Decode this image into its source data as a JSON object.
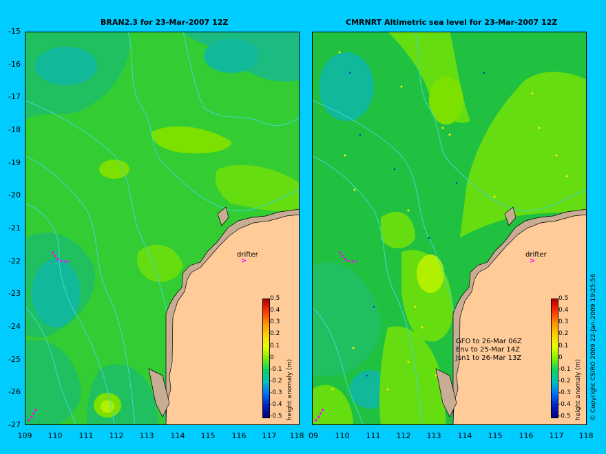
{
  "left_panel": {
    "title": "BRAN2.3 for 23-Mar-2007 12Z",
    "drifter_label": "drifter",
    "arrow": ">"
  },
  "right_panel": {
    "title": "CMRNRT Altimetric sea level  for 23-Mar-2007 12Z",
    "drifter_label": "drifter",
    "arrow": ">",
    "legend_lines": [
      "GFO to 26-Mar 06Z",
      "Env to 25-Mar 14Z",
      "Jsn1 to 26-Mar 13Z"
    ]
  },
  "y_axis_labels": [
    "-15",
    "-16",
    "-17",
    "-18",
    "-19",
    "-20",
    "-21",
    "-22",
    "-23",
    "-24",
    "-25",
    "-26",
    "-27"
  ],
  "left_x_labels": [
    "109",
    "110",
    "111",
    "112",
    "113",
    "114",
    "115",
    "116",
    "117",
    "118"
  ],
  "right_x_labels": [
    "09",
    "110",
    "111",
    "112",
    "113",
    "114",
    "115",
    "116",
    "117",
    "118"
  ],
  "colorbar": {
    "ticks": [
      "0.5",
      "0.4",
      "0.3",
      "0.2",
      "0.1",
      "0",
      "-0.1",
      "-0.2",
      "-0.3",
      "-0.4",
      "-0.5"
    ],
    "unit_label": "height anomaly (m)"
  },
  "copyright": "© Copyright CSIRO 2009   22-Jan-2009 19:25:56",
  "colors": {
    "background": "#00ccff",
    "land": "#ffcc99",
    "reef_land": "#c8ac94",
    "ocean_base": "#33cc33",
    "drifter": "#ff00ff"
  }
}
